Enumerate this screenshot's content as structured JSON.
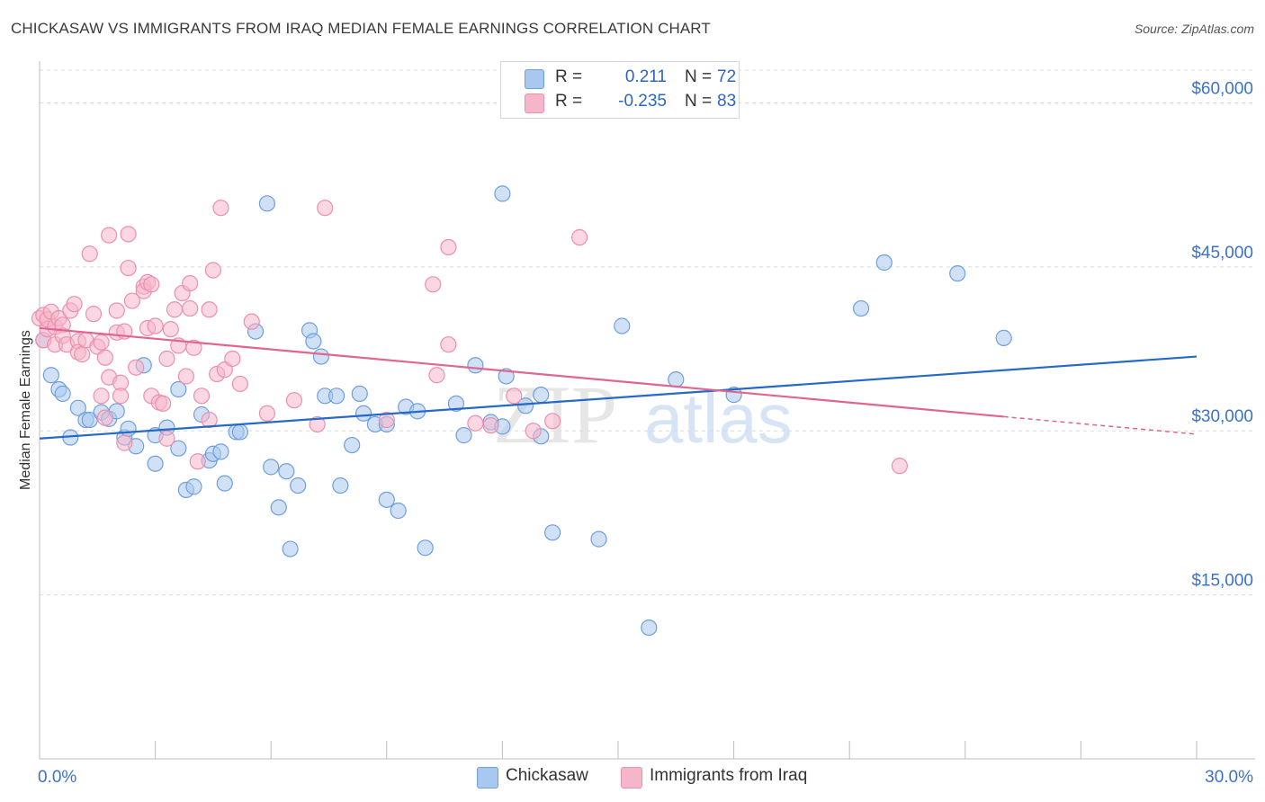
{
  "header": {
    "title": "CHICKASAW VS IMMIGRANTS FROM IRAQ MEDIAN FEMALE EARNINGS CORRELATION CHART",
    "source": "Source: ZipAtlas.com"
  },
  "watermark": {
    "zip": "ZIP",
    "atlas": "atlas"
  },
  "legend": {
    "series1": {
      "r_label": "R =",
      "r_value": "0.211",
      "n_label": "N =",
      "n_value": "72"
    },
    "series2": {
      "r_label": "R =",
      "r_value": "-0.235",
      "n_label": "N =",
      "n_value": "83"
    }
  },
  "colors": {
    "blue_fill": "#a9c8ef",
    "blue_stroke": "#6f9fdc",
    "blue_line": "#2569c9",
    "pink_fill": "#f6b6ca",
    "pink_stroke": "#ec8fae",
    "pink_line": "#e06590",
    "tick_label": "#3b72c9",
    "grid": "#dcdcdc"
  },
  "chart_data": {
    "type": "scatter",
    "title": "CHICKASAW VS IMMIGRANTS FROM IRAQ MEDIAN FEMALE EARNINGS CORRELATION CHART",
    "xlabel": "",
    "ylabel": "Median Female Earnings",
    "xlim": [
      0,
      30
    ],
    "ylim": [
      0,
      63000
    ],
    "y_ticks": [
      15000,
      30000,
      45000,
      60000
    ],
    "y_tick_labels": [
      "$15,000",
      "$30,000",
      "$45,000",
      "$60,000"
    ],
    "x_tick_labels": [
      "0.0%",
      "30.0%"
    ],
    "grid": true,
    "legend_position": "top-center",
    "series": [
      {
        "name": "Chickasaw",
        "color": "#a9c8ef",
        "trend": {
          "x": [
            0,
            30
          ],
          "y": [
            29300,
            36800
          ]
        },
        "points": [
          [
            0.1,
            38300
          ],
          [
            0.3,
            35100
          ],
          [
            0.5,
            33800
          ],
          [
            0.6,
            33400
          ],
          [
            0.8,
            29400
          ],
          [
            1.0,
            32100
          ],
          [
            1.2,
            31000
          ],
          [
            1.3,
            31000
          ],
          [
            1.6,
            31700
          ],
          [
            1.8,
            31100
          ],
          [
            2.0,
            31800
          ],
          [
            2.2,
            29400
          ],
          [
            2.3,
            30200
          ],
          [
            2.5,
            28600
          ],
          [
            2.7,
            36000
          ],
          [
            3.0,
            29600
          ],
          [
            3.0,
            27000
          ],
          [
            3.3,
            30300
          ],
          [
            3.6,
            28400
          ],
          [
            3.6,
            33800
          ],
          [
            3.8,
            24600
          ],
          [
            4.0,
            24900
          ],
          [
            4.2,
            31500
          ],
          [
            4.4,
            27300
          ],
          [
            4.5,
            27900
          ],
          [
            4.7,
            28100
          ],
          [
            4.8,
            25200
          ],
          [
            5.1,
            29900
          ],
          [
            5.2,
            29900
          ],
          [
            5.6,
            39100
          ],
          [
            5.9,
            50800
          ],
          [
            6.0,
            26700
          ],
          [
            6.2,
            23000
          ],
          [
            6.4,
            26300
          ],
          [
            6.5,
            19200
          ],
          [
            6.7,
            25000
          ],
          [
            7.0,
            39200
          ],
          [
            7.1,
            38200
          ],
          [
            7.3,
            36800
          ],
          [
            7.4,
            33200
          ],
          [
            7.7,
            33200
          ],
          [
            7.8,
            25000
          ],
          [
            8.1,
            28700
          ],
          [
            8.3,
            33400
          ],
          [
            8.4,
            31600
          ],
          [
            8.7,
            30600
          ],
          [
            9.0,
            23700
          ],
          [
            9.0,
            30600
          ],
          [
            9.3,
            22700
          ],
          [
            9.5,
            32200
          ],
          [
            9.8,
            31800
          ],
          [
            10.0,
            19300
          ],
          [
            10.8,
            32500
          ],
          [
            11.0,
            29600
          ],
          [
            11.3,
            36000
          ],
          [
            11.7,
            30800
          ],
          [
            12.0,
            30400
          ],
          [
            12.1,
            35000
          ],
          [
            12.0,
            51700
          ],
          [
            12.6,
            32300
          ],
          [
            13.0,
            33300
          ],
          [
            13.0,
            29500
          ],
          [
            13.3,
            20700
          ],
          [
            14.5,
            20100
          ],
          [
            15.1,
            39600
          ],
          [
            15.8,
            12000
          ],
          [
            16.5,
            34700
          ],
          [
            18.0,
            33300
          ],
          [
            21.3,
            41200
          ],
          [
            21.9,
            45400
          ],
          [
            23.8,
            44400
          ],
          [
            25.0,
            38500
          ]
        ]
      },
      {
        "name": "Immigrants from Iraq",
        "color": "#f6b6ca",
        "trend": {
          "x": [
            0,
            25.0
          ],
          "y": [
            39400,
            31300
          ]
        },
        "trend_dashed": {
          "x": [
            25.0,
            30
          ],
          "y": [
            31300,
            29700
          ]
        },
        "points": [
          [
            0.0,
            40300
          ],
          [
            0.1,
            38300
          ],
          [
            0.1,
            40600
          ],
          [
            0.2,
            39300
          ],
          [
            0.2,
            40200
          ],
          [
            0.3,
            40900
          ],
          [
            0.4,
            39500
          ],
          [
            0.4,
            37900
          ],
          [
            0.5,
            40300
          ],
          [
            0.6,
            39700
          ],
          [
            0.6,
            38700
          ],
          [
            0.7,
            37900
          ],
          [
            0.8,
            41000
          ],
          [
            0.9,
            41600
          ],
          [
            1.0,
            38200
          ],
          [
            1.0,
            37200
          ],
          [
            1.1,
            37000
          ],
          [
            1.2,
            38300
          ],
          [
            1.3,
            46200
          ],
          [
            1.4,
            40700
          ],
          [
            1.5,
            37700
          ],
          [
            1.6,
            38100
          ],
          [
            1.6,
            33200
          ],
          [
            1.7,
            31200
          ],
          [
            1.7,
            36700
          ],
          [
            1.8,
            34900
          ],
          [
            1.8,
            47900
          ],
          [
            2.0,
            41000
          ],
          [
            2.0,
            39000
          ],
          [
            2.1,
            34400
          ],
          [
            2.1,
            33200
          ],
          [
            2.2,
            28900
          ],
          [
            2.2,
            39100
          ],
          [
            2.3,
            44900
          ],
          [
            2.3,
            48000
          ],
          [
            2.4,
            41900
          ],
          [
            2.5,
            35800
          ],
          [
            2.7,
            43200
          ],
          [
            2.7,
            42800
          ],
          [
            2.8,
            43600
          ],
          [
            2.8,
            39400
          ],
          [
            2.9,
            33200
          ],
          [
            2.9,
            43400
          ],
          [
            3.0,
            39600
          ],
          [
            3.1,
            32600
          ],
          [
            3.2,
            32500
          ],
          [
            3.3,
            29300
          ],
          [
            3.3,
            36600
          ],
          [
            3.4,
            39300
          ],
          [
            3.5,
            41100
          ],
          [
            3.6,
            37800
          ],
          [
            3.7,
            42600
          ],
          [
            3.8,
            35000
          ],
          [
            3.9,
            43500
          ],
          [
            3.9,
            41200
          ],
          [
            4.0,
            37600
          ],
          [
            4.1,
            27200
          ],
          [
            4.2,
            33200
          ],
          [
            4.4,
            31000
          ],
          [
            4.4,
            41100
          ],
          [
            4.5,
            44700
          ],
          [
            4.6,
            35200
          ],
          [
            4.7,
            50400
          ],
          [
            4.8,
            35600
          ],
          [
            5.0,
            36600
          ],
          [
            5.2,
            34300
          ],
          [
            5.5,
            40000
          ],
          [
            5.9,
            31600
          ],
          [
            6.6,
            32800
          ],
          [
            7.2,
            30600
          ],
          [
            7.4,
            50400
          ],
          [
            9.0,
            31000
          ],
          [
            10.3,
            35100
          ],
          [
            10.2,
            43400
          ],
          [
            10.6,
            37900
          ],
          [
            10.6,
            46800
          ],
          [
            11.3,
            30700
          ],
          [
            11.7,
            30500
          ],
          [
            12.3,
            33200
          ],
          [
            12.8,
            30000
          ],
          [
            13.3,
            30900
          ],
          [
            14.0,
            47700
          ],
          [
            22.3,
            26800
          ]
        ]
      }
    ]
  },
  "bottom_legend": {
    "item1": "Chickasaw",
    "item2": "Immigrants from Iraq"
  }
}
